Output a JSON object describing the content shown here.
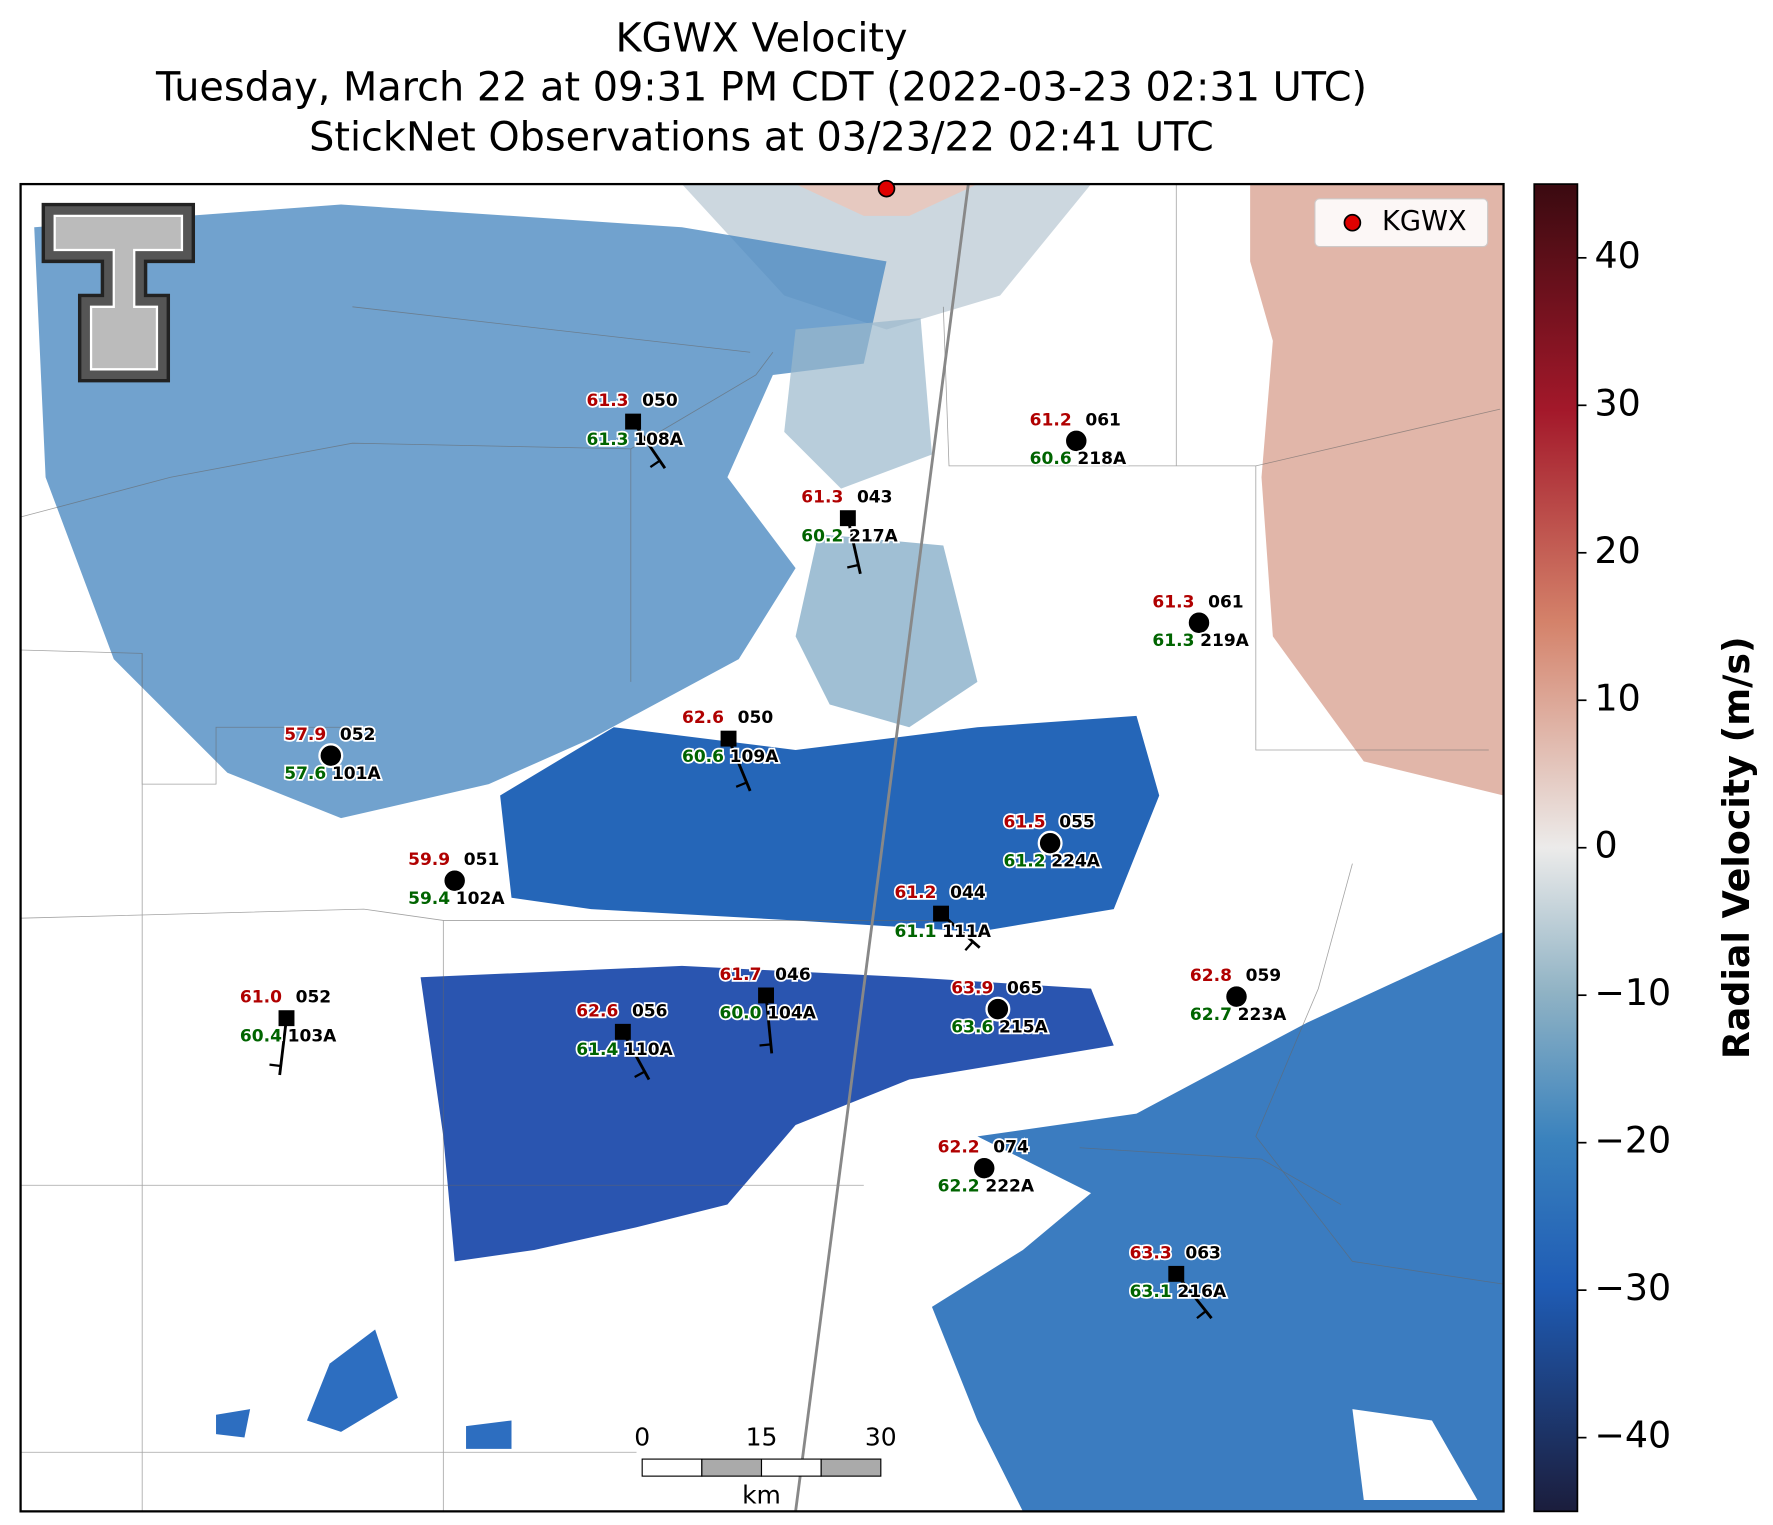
{
  "title": [
    "KGWX Velocity",
    "Tuesday, March 22 at 09:31 PM CDT (2022-03-23 02:31 UTC)",
    "StickNet Observations at 03/23/22 02:41 UTC"
  ],
  "legend": {
    "label": "KGWX",
    "color": "#e00000"
  },
  "colorbar": {
    "label": "Radial Velocity (m/s)",
    "lim": [
      -45,
      45
    ],
    "ticks": [
      40,
      30,
      20,
      10,
      0,
      {
        "value": -10,
        "label": "−10"
      },
      {
        "value": -20,
        "label": "−20"
      },
      {
        "value": -30,
        "label": "−30"
      },
      {
        "value": -40,
        "label": "−40"
      }
    ]
  },
  "stations": [
    {
      "id": "108A",
      "temperature": "61.3",
      "dewpoint": "61.3",
      "wind": "050"
    },
    {
      "id": "218A",
      "temperature": "61.2",
      "dewpoint": "60.6",
      "wind": "061"
    },
    {
      "id": "217A",
      "temperature": "61.3",
      "dewpoint": "60.2",
      "wind": "043"
    },
    {
      "id": "219A",
      "temperature": "61.3",
      "dewpoint": "61.3",
      "wind": "061"
    },
    {
      "id": "109A",
      "temperature": "62.6",
      "dewpoint": "60.6",
      "wind": "050"
    },
    {
      "id": "101A",
      "temperature": "57.9",
      "dewpoint": "57.6",
      "wind": "052"
    },
    {
      "id": "224A",
      "temperature": "61.5",
      "dewpoint": "61.2",
      "wind": "055"
    },
    {
      "id": "102A",
      "temperature": "59.9",
      "dewpoint": "59.4",
      "wind": "051"
    },
    {
      "id": "111A",
      "temperature": "61.2",
      "dewpoint": "61.1",
      "wind": "044"
    },
    {
      "id": "103A",
      "temperature": "61.0",
      "dewpoint": "60.4",
      "wind": "052"
    },
    {
      "id": "104A",
      "temperature": "61.7",
      "dewpoint": "60.0",
      "wind": "046"
    },
    {
      "id": "110A",
      "temperature": "62.6",
      "dewpoint": "61.4",
      "wind": "056"
    },
    {
      "id": "215A",
      "temperature": "63.9",
      "dewpoint": "63.6",
      "wind": "065"
    },
    {
      "id": "223A",
      "temperature": "62.8",
      "dewpoint": "62.7",
      "wind": "059"
    },
    {
      "id": "222A",
      "temperature": "62.2",
      "dewpoint": "62.2",
      "wind": "074"
    },
    {
      "id": "216A",
      "temperature": "63.3",
      "dewpoint": "63.1",
      "wind": "063"
    }
  ],
  "scale_bar": {
    "ticks": [
      0,
      15,
      30
    ],
    "unit": "km"
  }
}
